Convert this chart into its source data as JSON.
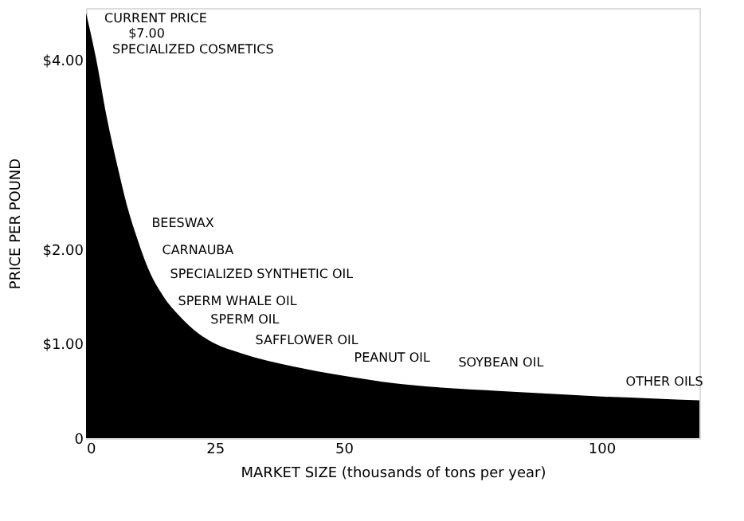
{
  "chart_data": {
    "type": "area",
    "xlabel": "MARKET SIZE (thousands of tons per year)",
    "ylabel": "PRICE PER POUND",
    "x": [
      0,
      2,
      4,
      6,
      8,
      10,
      12,
      15,
      18,
      22,
      25,
      30,
      40,
      50,
      60,
      70,
      80,
      90,
      100,
      110,
      119
    ],
    "series": [
      {
        "color": "#000000",
        "values": [
          4.5,
          4.0,
          3.4,
          2.9,
          2.45,
          2.1,
          1.8,
          1.5,
          1.3,
          1.1,
          1.0,
          0.9,
          0.76,
          0.66,
          0.58,
          0.53,
          0.5,
          0.47,
          0.44,
          0.42,
          0.4
        ]
      }
    ],
    "xlim": [
      0,
      119
    ],
    "ylim": [
      0,
      4.55
    ],
    "xticks": [
      0,
      25,
      50,
      100
    ],
    "yticks": [
      {
        "value": 0,
        "label": "0"
      },
      {
        "value": 1,
        "label": "$1.00"
      },
      {
        "value": 2,
        "label": "$2.00"
      },
      {
        "value": 4,
        "label": "$4.00"
      }
    ],
    "annotations": [
      "CURRENT PRICE",
      "$7.00",
      "SPECIALIZED COSMETICS",
      "BEESWAX",
      "CARNAUBA",
      "SPECIALIZED SYNTHETIC OIL",
      "SPERM WHALE OIL",
      "SPERM OIL",
      "SAFFLOWER OIL",
      "PEANUT OIL",
      "SOYBEAN OIL",
      "OTHER OILS"
    ]
  }
}
